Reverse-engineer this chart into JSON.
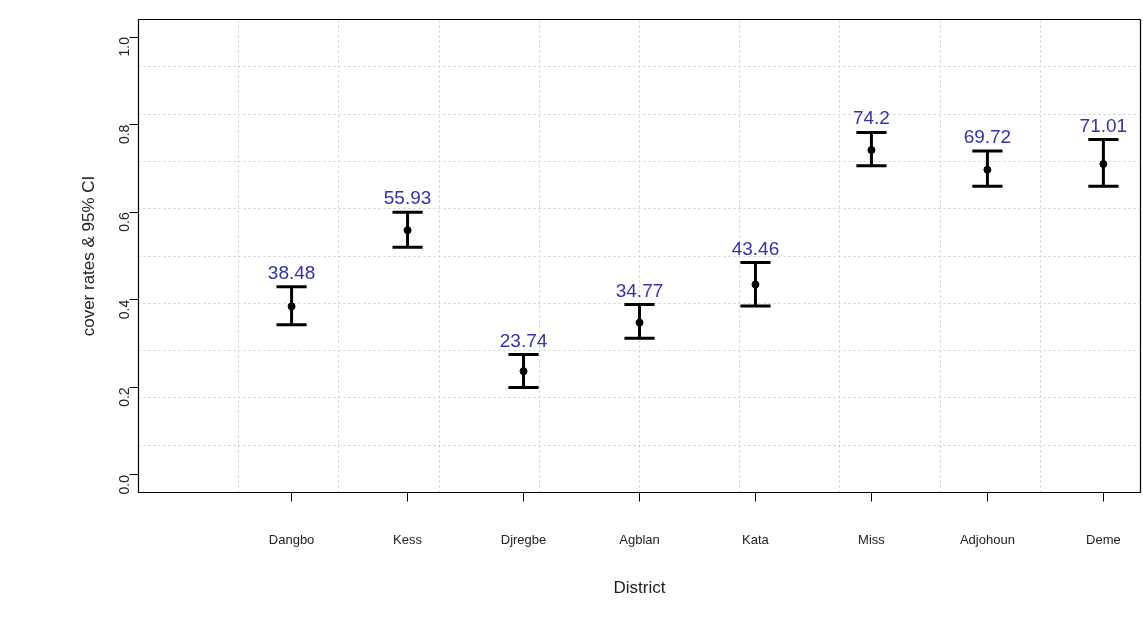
{
  "chart_data": {
    "type": "scatter",
    "xlabel": "District",
    "ylabel": "cover rates & 95% CI",
    "categories": [
      "Dangbo",
      "Kess",
      "Djregbe",
      "Agblan",
      "Kata",
      "Miss",
      "Adjohoun",
      "Deme"
    ],
    "series": [
      {
        "color": "#000000",
        "values": [
          0.385,
          0.559,
          0.237,
          0.348,
          0.435,
          0.742,
          0.697,
          0.71
        ],
        "errors": [
          [
            0.343,
            0.43
          ],
          [
            0.52,
            0.6
          ],
          [
            0.2,
            0.275
          ],
          [
            0.312,
            0.389
          ],
          [
            0.386,
            0.485
          ],
          [
            0.706,
            0.782
          ],
          [
            0.659,
            0.74
          ],
          [
            0.659,
            0.766
          ]
        ]
      }
    ],
    "annotations": [
      {
        "text": "38.48",
        "x": "Dangbo",
        "y": 0.43
      },
      {
        "text": "55.93",
        "x": "Kess",
        "y": 0.6
      },
      {
        "text": "23.74",
        "x": "Djregbe",
        "y": 0.275
      },
      {
        "text": "34.77",
        "x": "Agblan",
        "y": 0.389
      },
      {
        "text": "43.46",
        "x": "Kata",
        "y": 0.485
      },
      {
        "text": "74.2",
        "x": "Miss",
        "y": 0.782
      },
      {
        "text": "69.72",
        "x": "Adjohoun",
        "y": 0.74
      },
      {
        "text": "71.01",
        "x": "Deme",
        "y": 0.766
      }
    ],
    "ylim": [
      -0.04,
      1.04
    ],
    "yticks": [
      {
        "value": 0,
        "label": "0.0"
      },
      0.2,
      0.4,
      0.6,
      0.8,
      {
        "value": 1,
        "label": "1.0"
      }
    ],
    "marker": "circle",
    "grid": true
  }
}
